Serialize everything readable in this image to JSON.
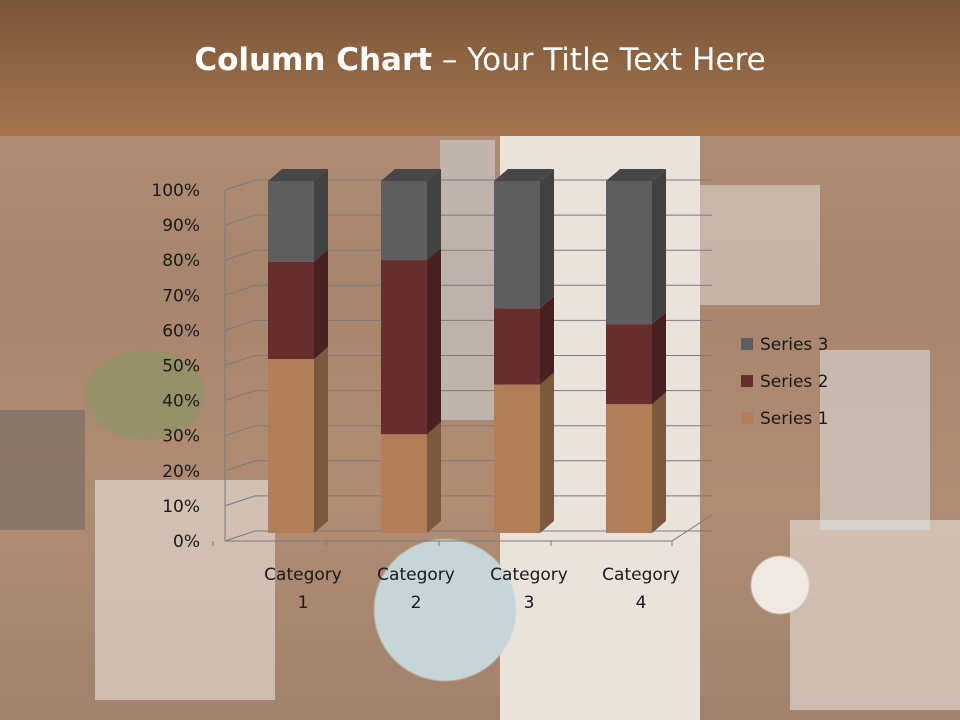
{
  "slide": {
    "title_bold": "Column Chart",
    "title_rest": " – Your Title Text Here"
  },
  "chart_data": {
    "type": "bar",
    "subtype": "100% stacked column, 3D",
    "categories": [
      "Category 1",
      "Category 2",
      "Category 3",
      "Category 4"
    ],
    "category_lines": [
      [
        "Category",
        "1"
      ],
      [
        "Category",
        "2"
      ],
      [
        "Category",
        "3"
      ],
      [
        "Category",
        "4"
      ]
    ],
    "series": [
      {
        "name": "Series 1",
        "values": [
          4.3,
          2.5,
          3.5,
          4.5
        ],
        "color": "#b07e58"
      },
      {
        "name": "Series 2",
        "values": [
          2.4,
          4.4,
          1.8,
          2.8
        ],
        "color": "#672e2e"
      },
      {
        "name": "Series 3",
        "values": [
          2,
          2,
          3,
          5
        ],
        "color": "#5e5e5e"
      }
    ],
    "y_ticks": [
      "0%",
      "10%",
      "20%",
      "30%",
      "40%",
      "50%",
      "60%",
      "70%",
      "80%",
      "90%",
      "100%"
    ],
    "ylim": [
      0,
      100
    ],
    "grid": true,
    "legend": "right"
  }
}
